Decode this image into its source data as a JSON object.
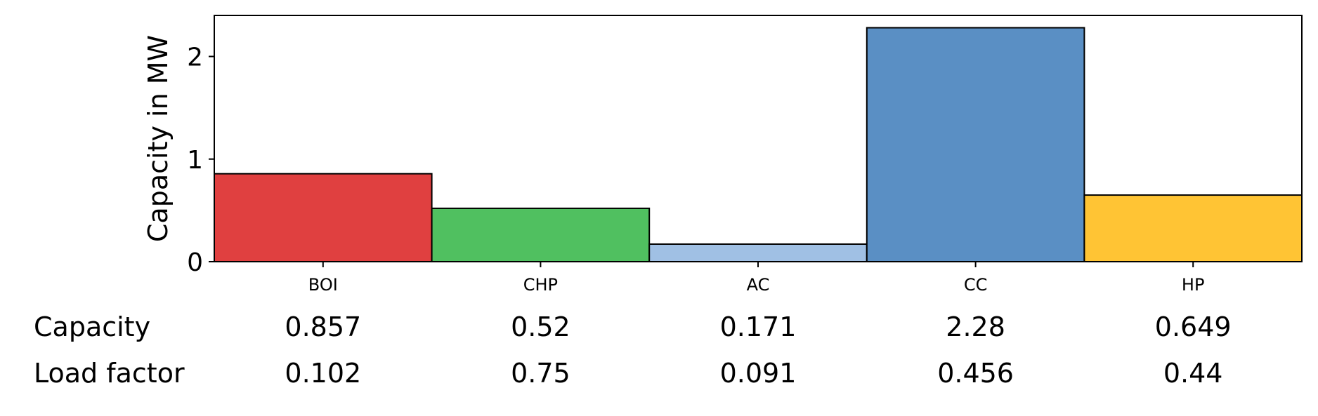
{
  "chart_data": {
    "type": "bar",
    "categories": [
      "BOI",
      "CHP",
      "AC",
      "CC",
      "HP"
    ],
    "values": [
      0.857,
      0.52,
      0.171,
      2.28,
      0.649
    ],
    "colors": [
      "#e04040",
      "#50c060",
      "#a0c0e4",
      "#5a8fc4",
      "#ffc434"
    ],
    "ylabel": "Capacity in MW",
    "ylim": [
      0,
      2.4
    ],
    "yticks": [
      0,
      1,
      2
    ],
    "grid": false
  },
  "table": {
    "rows": [
      {
        "label": "Capacity",
        "values": [
          "0.857",
          "0.52",
          "0.171",
          "2.28",
          "0.649"
        ]
      },
      {
        "label": "Load factor",
        "values": [
          "0.102",
          "0.75",
          "0.091",
          "0.456",
          "0.44"
        ]
      }
    ]
  }
}
